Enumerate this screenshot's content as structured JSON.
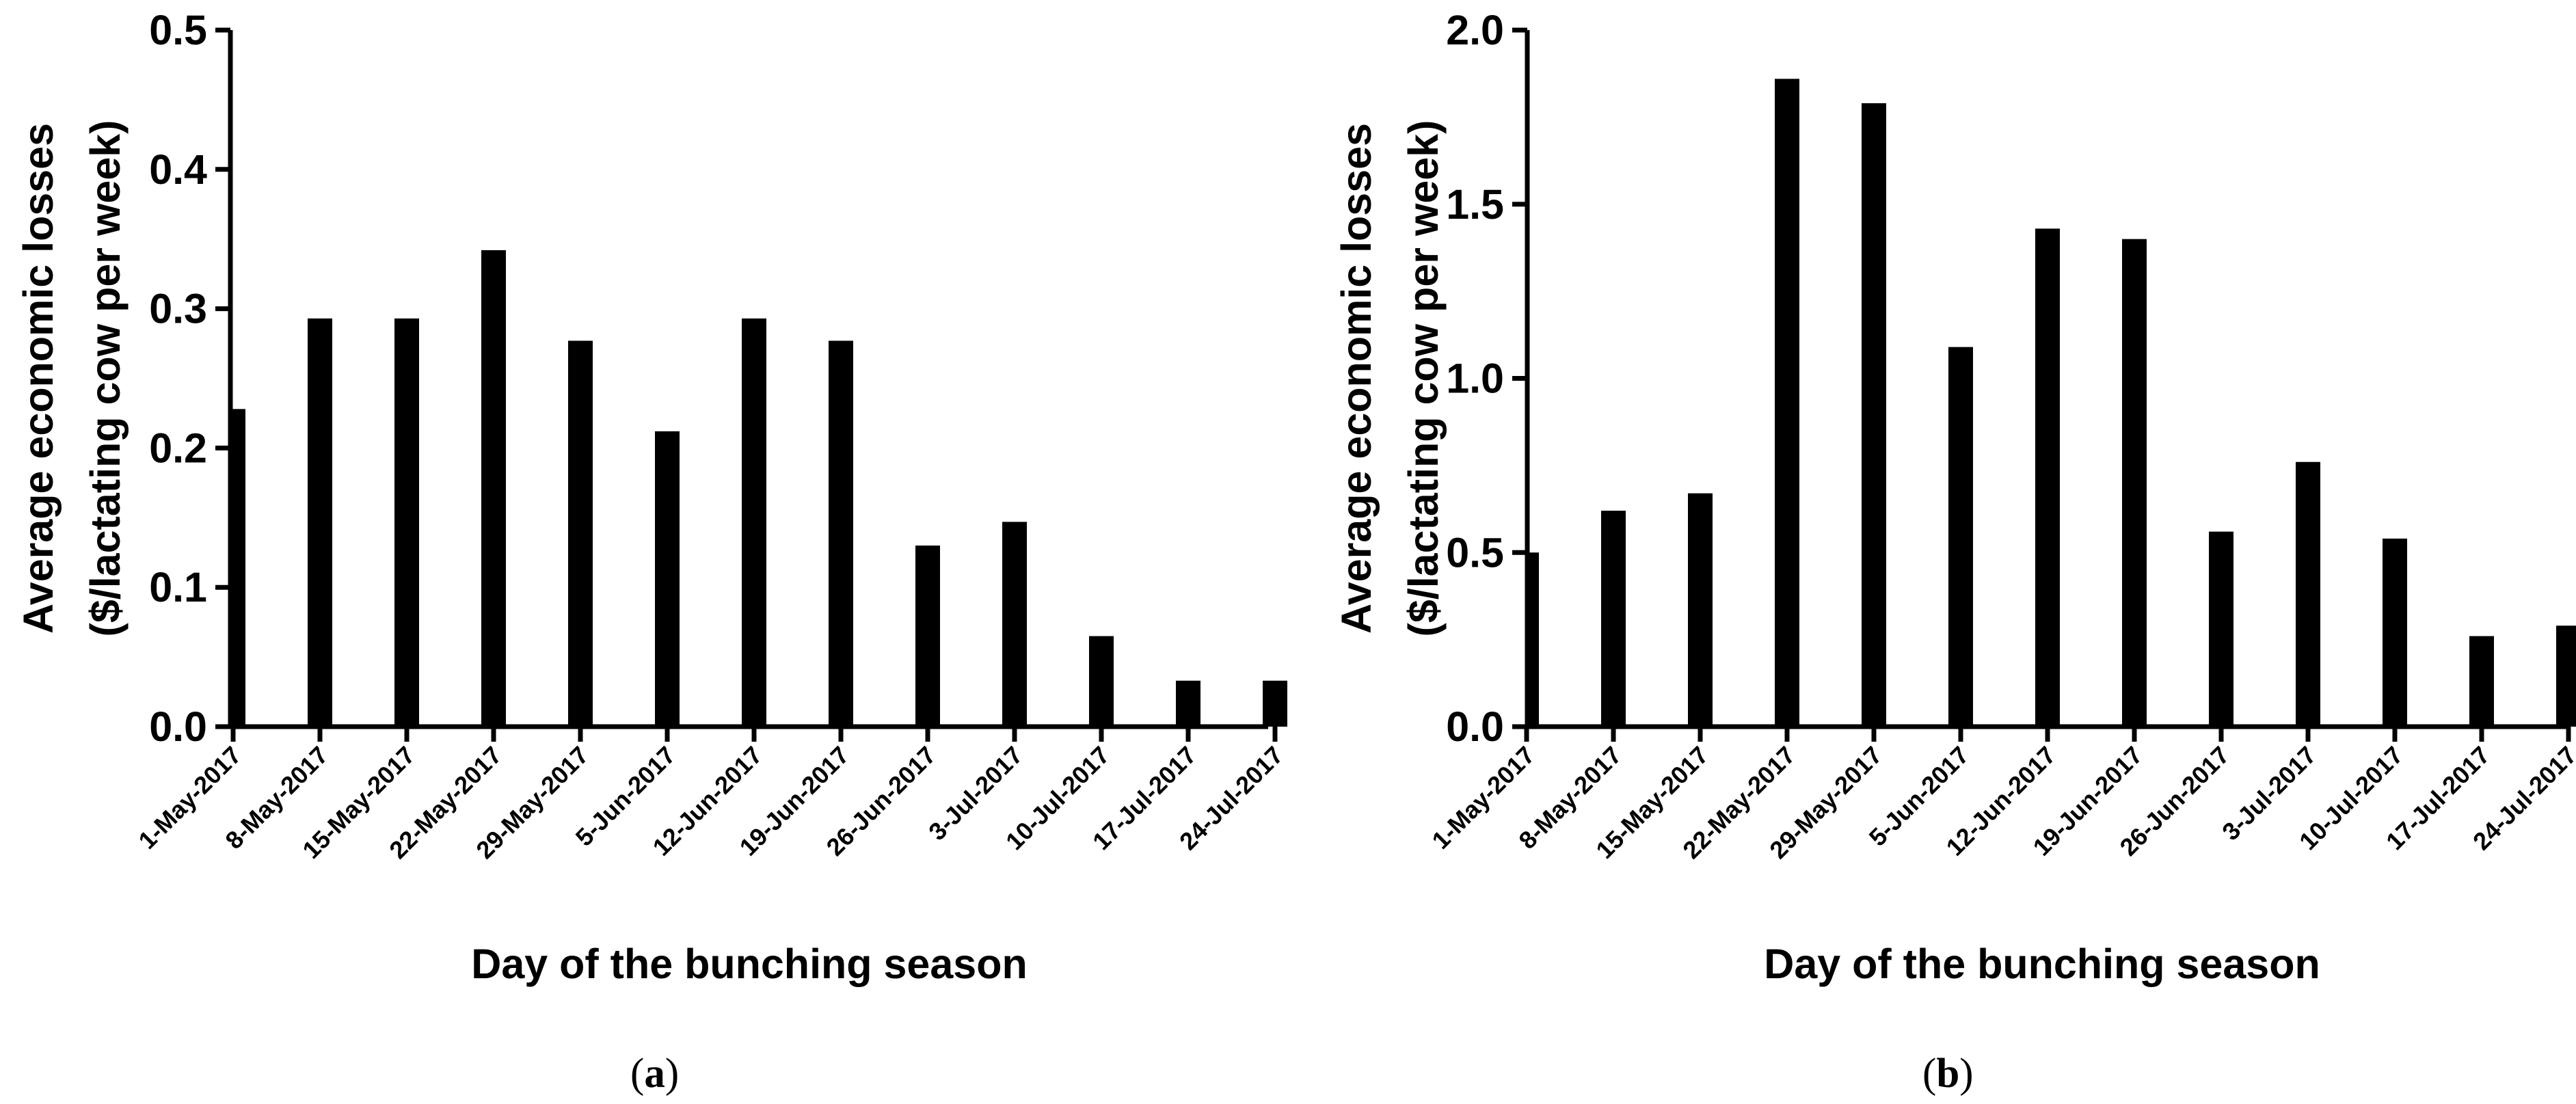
{
  "chart_data": [
    {
      "type": "bar",
      "panel": "a",
      "caption_open": "(",
      "caption_letter": "a",
      "caption_close": ")",
      "categories": [
        "1-May-2017",
        "8-May-2017",
        "15-May-2017",
        "22-May-2017",
        "29-May-2017",
        "5-Jun-2017",
        "12-Jun-2017",
        "19-Jun-2017",
        "26-Jun-2017",
        "3-Jul-2017",
        "10-Jul-2017",
        "17-Jul-2017",
        "24-Jul-2017"
      ],
      "values": [
        0.228,
        0.293,
        0.293,
        0.342,
        0.277,
        0.212,
        0.293,
        0.277,
        0.13,
        0.147,
        0.065,
        0.033,
        0.033
      ],
      "ylim": [
        0,
        0.5
      ],
      "yticks": [
        "0.0",
        "0.1",
        "0.2",
        "0.3",
        "0.4",
        "0.5"
      ],
      "ylabel_line1": "Average economic losses",
      "ylabel_line2": "($/lactating cow per week)",
      "xlabel": "Day of the bunching season"
    },
    {
      "type": "bar",
      "panel": "b",
      "caption_open": "(",
      "caption_letter": "b",
      "caption_close": ")",
      "categories": [
        "1-May-2017",
        "8-May-2017",
        "15-May-2017",
        "22-May-2017",
        "29-May-2017",
        "5-Jun-2017",
        "12-Jun-2017",
        "19-Jun-2017",
        "26-Jun-2017",
        "3-Jul-2017",
        "10-Jul-2017",
        "17-Jul-2017",
        "24-Jul-2017"
      ],
      "values": [
        0.5,
        0.62,
        0.67,
        1.86,
        1.79,
        1.09,
        1.43,
        1.4,
        0.56,
        0.76,
        0.54,
        0.26,
        0.29
      ],
      "ylim": [
        0,
        2.0
      ],
      "yticks": [
        "0.0",
        "0.5",
        "1.0",
        "1.5",
        "2.0"
      ],
      "ylabel_line1": "Average economic losses",
      "ylabel_line2": "($/lactating cow per week)",
      "xlabel": "Day of the bunching season"
    }
  ]
}
